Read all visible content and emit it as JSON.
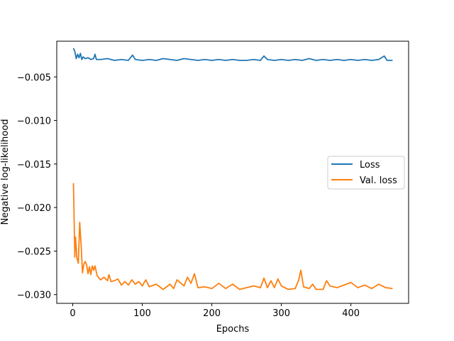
{
  "chart_data": {
    "type": "line",
    "title": "",
    "xlabel": "Epochs",
    "ylabel": "Negative log-likelihood",
    "xlim": [
      -23,
      483
    ],
    "ylim": [
      -0.031,
      -0.0009
    ],
    "x_ticks": [
      {
        "value": 0,
        "label": "0"
      },
      {
        "value": 100,
        "label": "100"
      },
      {
        "value": 200,
        "label": "200"
      },
      {
        "value": 300,
        "label": "300"
      },
      {
        "value": 400,
        "label": "400"
      }
    ],
    "y_ticks": [
      {
        "value": -0.005,
        "label": "−0.005"
      },
      {
        "value": -0.01,
        "label": "−0.010"
      },
      {
        "value": -0.015,
        "label": "−0.015"
      },
      {
        "value": -0.02,
        "label": "−0.020"
      },
      {
        "value": -0.025,
        "label": "−0.025"
      },
      {
        "value": -0.03,
        "label": "−0.030"
      }
    ],
    "grid": false,
    "legend_position": "center-right",
    "series": [
      {
        "name": "Loss",
        "color": "#1f77b4",
        "x": [
          1,
          3,
          5,
          7,
          9,
          11,
          13,
          15,
          18,
          22,
          26,
          30,
          32,
          34,
          40,
          50,
          60,
          70,
          80,
          86,
          90,
          100,
          110,
          120,
          130,
          140,
          150,
          160,
          170,
          180,
          190,
          200,
          210,
          220,
          230,
          240,
          250,
          260,
          270,
          275,
          280,
          290,
          300,
          310,
          320,
          330,
          340,
          350,
          360,
          370,
          380,
          390,
          400,
          410,
          420,
          430,
          440,
          448,
          452,
          460
        ],
        "y": [
          -0.0017,
          -0.0021,
          -0.0029,
          -0.0024,
          -0.0028,
          -0.0023,
          -0.003,
          -0.0027,
          -0.0029,
          -0.0028,
          -0.003,
          -0.0029,
          -0.0024,
          -0.003,
          -0.003,
          -0.0029,
          -0.0031,
          -0.003,
          -0.0031,
          -0.0025,
          -0.003,
          -0.0031,
          -0.003,
          -0.0031,
          -0.0029,
          -0.003,
          -0.0031,
          -0.0029,
          -0.003,
          -0.0031,
          -0.003,
          -0.0031,
          -0.003,
          -0.0031,
          -0.003,
          -0.0031,
          -0.0031,
          -0.003,
          -0.0031,
          -0.0026,
          -0.003,
          -0.0031,
          -0.003,
          -0.0031,
          -0.003,
          -0.0031,
          -0.0029,
          -0.0031,
          -0.003,
          -0.0031,
          -0.003,
          -0.0031,
          -0.003,
          -0.0031,
          -0.003,
          -0.0031,
          -0.003,
          -0.0026,
          -0.0031,
          -0.0031
        ]
      },
      {
        "name": "Val. loss",
        "color": "#ff7f0e",
        "x": [
          1,
          3,
          4,
          6,
          8,
          10,
          12,
          14,
          16,
          18,
          20,
          22,
          24,
          26,
          28,
          30,
          32,
          35,
          40,
          45,
          50,
          52,
          55,
          60,
          65,
          70,
          75,
          80,
          85,
          90,
          95,
          100,
          105,
          110,
          120,
          130,
          140,
          145,
          150,
          160,
          165,
          170,
          175,
          180,
          190,
          200,
          210,
          220,
          230,
          240,
          250,
          260,
          270,
          275,
          280,
          285,
          290,
          295,
          300,
          310,
          320,
          325,
          328,
          332,
          340,
          345,
          350,
          360,
          365,
          370,
          380,
          390,
          400,
          410,
          420,
          430,
          440,
          450,
          460
        ],
        "y": [
          -0.0172,
          -0.0257,
          -0.0234,
          -0.0258,
          -0.0264,
          -0.0217,
          -0.0242,
          -0.0275,
          -0.0265,
          -0.0262,
          -0.0266,
          -0.0276,
          -0.0268,
          -0.0277,
          -0.0267,
          -0.0272,
          -0.0267,
          -0.0278,
          -0.0283,
          -0.028,
          -0.0284,
          -0.0277,
          -0.0285,
          -0.0284,
          -0.0282,
          -0.0289,
          -0.0285,
          -0.0289,
          -0.0283,
          -0.0288,
          -0.0285,
          -0.029,
          -0.0283,
          -0.0291,
          -0.0288,
          -0.0294,
          -0.0288,
          -0.0293,
          -0.0283,
          -0.029,
          -0.028,
          -0.0287,
          -0.0276,
          -0.0292,
          -0.0291,
          -0.0293,
          -0.0287,
          -0.0293,
          -0.0288,
          -0.0294,
          -0.0292,
          -0.029,
          -0.0292,
          -0.0281,
          -0.0292,
          -0.0284,
          -0.0292,
          -0.0282,
          -0.029,
          -0.0294,
          -0.0293,
          -0.0283,
          -0.0272,
          -0.0291,
          -0.0293,
          -0.0288,
          -0.0294,
          -0.0294,
          -0.0284,
          -0.029,
          -0.0292,
          -0.0289,
          -0.0286,
          -0.0292,
          -0.0289,
          -0.0293,
          -0.0288,
          -0.0292,
          -0.0293
        ]
      }
    ]
  }
}
